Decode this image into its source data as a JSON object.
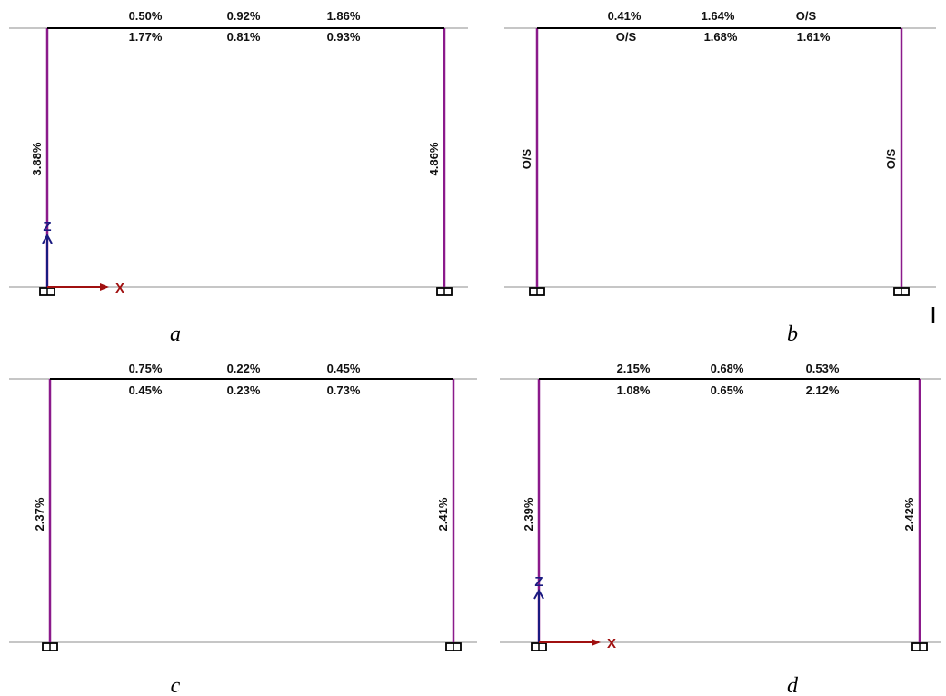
{
  "colors": {
    "background": "#ffffff",
    "ground_line": "#b4b4b4",
    "beam": "#000000",
    "column": "#8b1a8b",
    "support": "#000000",
    "z_axis": "#1a1a80",
    "x_axis": "#a01010",
    "text": "#111111"
  },
  "panels": [
    {
      "id": "a",
      "caption": "a",
      "beam_top_labels": [
        "0.50%",
        "0.92%",
        "1.86%"
      ],
      "beam_bottom_labels": [
        "1.77%",
        "0.81%",
        "0.93%"
      ],
      "left_column_label": "3.88%",
      "right_column_label": "4.86%",
      "axes": {
        "z": "Z",
        "x": "X"
      }
    },
    {
      "id": "b",
      "caption": "b",
      "beam_top_labels": [
        "0.41%",
        "1.64%",
        "O/S"
      ],
      "beam_bottom_labels": [
        "O/S",
        "1.68%",
        "1.61%"
      ],
      "left_column_label": "O/S",
      "right_column_label": "O/S",
      "axes": null
    },
    {
      "id": "c",
      "caption": "c",
      "beam_top_labels": [
        "0.75%",
        "0.22%",
        "0.45%"
      ],
      "beam_bottom_labels": [
        "0.45%",
        "0.23%",
        "0.73%"
      ],
      "left_column_label": "2.37%",
      "right_column_label": "2.41%",
      "axes": null
    },
    {
      "id": "d",
      "caption": "d",
      "beam_top_labels": [
        "2.15%",
        "0.68%",
        "0.53%"
      ],
      "beam_bottom_labels": [
        "1.08%",
        "0.65%",
        "2.12%"
      ],
      "left_column_label": "2.39%",
      "right_column_label": "2.42%",
      "axes": {
        "z": "Z",
        "x": "X"
      }
    }
  ]
}
